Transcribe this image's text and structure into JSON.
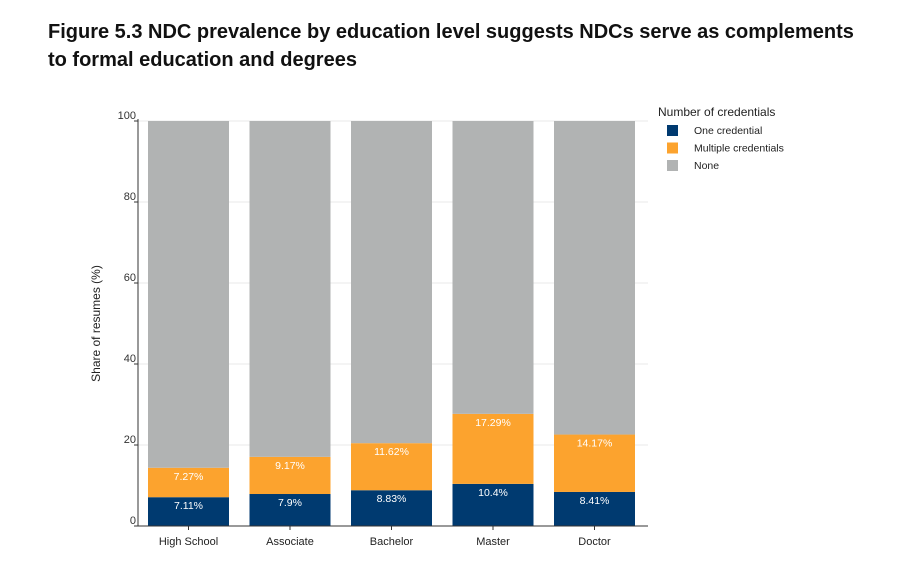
{
  "figure": {
    "title": "Figure 5.3 NDC prevalence by education level suggests NDCs serve as complements to formal education and degrees"
  },
  "chart_data": {
    "type": "bar",
    "stacked": true,
    "categories": [
      "High School",
      "Associate",
      "Bachelor",
      "Master",
      "Doctor"
    ],
    "series": [
      {
        "name": "One credential",
        "color": "#003a70",
        "label_color": "#ffffff",
        "values": [
          7.11,
          7.9,
          8.83,
          10.4,
          8.41
        ],
        "labels": [
          "7.11%",
          "7.9%",
          "8.83%",
          "10.4%",
          "8.41%"
        ]
      },
      {
        "name": "Multiple credentials",
        "color": "#fca32e",
        "label_color": "#ffffff",
        "values": [
          7.27,
          9.17,
          11.62,
          17.29,
          14.17
        ],
        "labels": [
          "7.27%",
          "9.17%",
          "11.62%",
          "17.29%",
          "14.17%"
        ]
      },
      {
        "name": "None",
        "color": "#b1b3b3",
        "values": [
          85.62,
          82.93,
          79.55,
          72.31,
          77.42
        ]
      }
    ],
    "xlabel": "",
    "ylabel": "Share of resumes (%)",
    "ylim": [
      0,
      100
    ],
    "yticks": [
      0,
      20,
      40,
      60,
      80,
      100
    ],
    "legend": {
      "title": "Number of credentials",
      "placement": "top-right"
    },
    "grid": true,
    "grid_color": "#e8e8e8"
  }
}
